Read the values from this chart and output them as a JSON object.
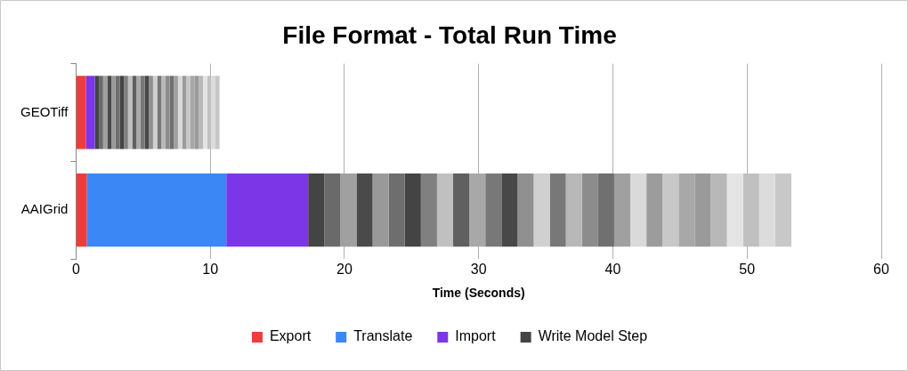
{
  "chart_data": {
    "type": "bar",
    "title": "File Format - Total Run Time",
    "xlabel": "Time (Seconds)",
    "categories": [
      "GEOTiff",
      "AAIGrid"
    ],
    "stacked": true,
    "orientation": "horizontal",
    "xlim": [
      0,
      60
    ],
    "xticks": [
      0,
      10,
      20,
      30,
      40,
      50,
      60
    ],
    "grid": "x",
    "legend": "bottom",
    "series": [
      {
        "name": "Export",
        "color": "#ee3b3b",
        "values": [
          0.75,
          0.8
        ]
      },
      {
        "name": "Translate",
        "color": "#3a87f5",
        "values": [
          0,
          10.4
        ]
      },
      {
        "name": "Import",
        "color": "#7d35e8",
        "values": [
          0.65,
          6.1
        ]
      },
      {
        "name": "Write Model Step",
        "color": "#444444",
        "values": [
          0.31,
          1.2
        ]
      },
      {
        "color": "#6a6a6a",
        "values": [
          0.31,
          1.2
        ]
      },
      {
        "color": "#a0a0a0",
        "values": [
          0.31,
          1.2
        ]
      },
      {
        "color": "#4a4a4a",
        "values": [
          0.31,
          1.2
        ]
      },
      {
        "color": "#999999",
        "values": [
          0.31,
          1.2
        ]
      },
      {
        "color": "#6e6e6e",
        "values": [
          0.31,
          1.2
        ]
      },
      {
        "color": "#444444",
        "values": [
          0.31,
          1.2
        ]
      },
      {
        "color": "#808080",
        "values": [
          0.31,
          1.2
        ]
      },
      {
        "color": "#c0c0c0",
        "values": [
          0.31,
          1.2
        ]
      },
      {
        "color": "#606060",
        "values": [
          0.31,
          1.2
        ]
      },
      {
        "color": "#a8a8a8",
        "values": [
          0.31,
          1.2
        ]
      },
      {
        "color": "#787878",
        "values": [
          0.31,
          1.2
        ]
      },
      {
        "color": "#484848",
        "values": [
          0.31,
          1.2
        ]
      },
      {
        "color": "#909090",
        "values": [
          0.31,
          1.2
        ]
      },
      {
        "color": "#d0d0d0",
        "values": [
          0.31,
          1.2
        ]
      },
      {
        "color": "#787878",
        "values": [
          0.31,
          1.2
        ]
      },
      {
        "color": "#b8b8b8",
        "values": [
          0.31,
          1.2
        ]
      },
      {
        "color": "#8c8c8c",
        "values": [
          0.31,
          1.2
        ]
      },
      {
        "color": "#707070",
        "values": [
          0.31,
          1.2
        ]
      },
      {
        "color": "#a0a0a0",
        "values": [
          0.31,
          1.2
        ]
      },
      {
        "color": "#dadada",
        "values": [
          0.31,
          1.2
        ]
      },
      {
        "color": "#9c9c9c",
        "values": [
          0.31,
          1.2
        ]
      },
      {
        "color": "#c8c8c8",
        "values": [
          0.31,
          1.2
        ]
      },
      {
        "color": "#a8a8a8",
        "values": [
          0.31,
          1.2
        ]
      },
      {
        "color": "#9a9a9a",
        "values": [
          0.31,
          1.2
        ]
      },
      {
        "color": "#b8b8b8",
        "values": [
          0.31,
          1.2
        ]
      },
      {
        "color": "#e4e4e4",
        "values": [
          0.31,
          1.2
        ]
      },
      {
        "color": "#c0c0c0",
        "values": [
          0.31,
          1.2
        ]
      },
      {
        "color": "#dcdcdc",
        "values": [
          0.31,
          1.2
        ]
      },
      {
        "color": "#c8c8c8",
        "values": [
          0.31,
          1.2
        ]
      }
    ]
  }
}
